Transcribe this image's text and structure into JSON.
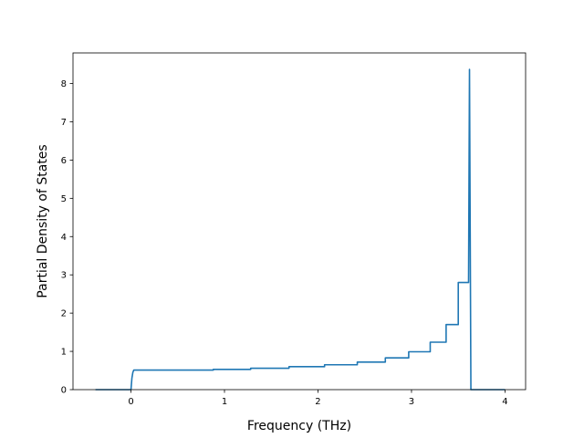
{
  "chart_data": {
    "type": "line",
    "title": "",
    "xlabel": "Frequency (THz)",
    "ylabel": "Partial Density of States",
    "xlim": [
      -0.62,
      4.22
    ],
    "ylim": [
      0,
      8.8
    ],
    "xticks": [
      0,
      1,
      2,
      3,
      4
    ],
    "yticks": [
      0,
      1,
      2,
      3,
      4,
      5,
      6,
      7,
      8
    ],
    "grid": false,
    "legend": "none",
    "color": "#1f77b4",
    "series": [
      {
        "x": [
          -0.38,
          0.0,
          0.01,
          0.02,
          0.03,
          0.88,
          0.88,
          1.28,
          1.28,
          1.69,
          1.69,
          2.07,
          2.07,
          2.42,
          2.42,
          2.72,
          2.72,
          2.97,
          2.97,
          3.2,
          3.2,
          3.37,
          3.37,
          3.5,
          3.5,
          3.57,
          3.57,
          3.61,
          3.62,
          3.635,
          3.64,
          3.7,
          4.0
        ],
        "y": [
          0.0,
          0.0,
          0.3,
          0.45,
          0.51,
          0.51,
          0.53,
          0.53,
          0.56,
          0.56,
          0.6,
          0.6,
          0.65,
          0.65,
          0.72,
          0.72,
          0.83,
          0.83,
          0.99,
          0.99,
          1.24,
          1.24,
          1.7,
          1.7,
          2.8,
          2.8,
          2.8,
          2.8,
          8.37,
          0.0,
          0.0,
          0.0,
          0.0
        ]
      }
    ]
  }
}
